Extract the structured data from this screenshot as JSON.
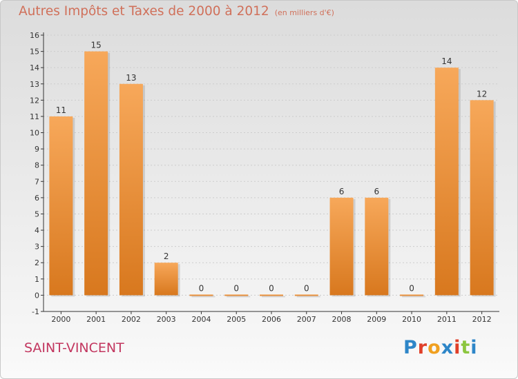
{
  "header": {
    "title": "Autres Impôts et Taxes de 2000 à 2012",
    "subtitle": "(en milliers d'€)"
  },
  "footer": {
    "commune": "SAINT-VINCENT",
    "logo": [
      "P",
      "r",
      "o",
      "x",
      "i",
      "t",
      "i"
    ]
  },
  "colors": {
    "title": "#d0705a",
    "commune": "#c2365f",
    "bar_top": "#f7a85a",
    "bar_bottom": "#d8781e",
    "axis": "#333333",
    "grid": "#cccccc",
    "logo": [
      "#2e86c8",
      "#e0402a",
      "#f0a020",
      "#2e86c8",
      "#e0402a",
      "#8cc63f",
      "#2e86c8"
    ]
  },
  "chart_data": {
    "type": "bar",
    "title": "Autres Impôts et Taxes de 2000 à 2012",
    "xlabel": "",
    "ylabel": "",
    "categories": [
      "2000",
      "2001",
      "2002",
      "2003",
      "2004",
      "2005",
      "2006",
      "2007",
      "2008",
      "2009",
      "2010",
      "2011",
      "2012"
    ],
    "values": [
      11,
      15,
      13,
      2,
      0,
      0,
      0,
      0,
      6,
      6,
      0,
      14,
      12
    ],
    "data_labels": [
      "11",
      "15",
      "13",
      "2",
      "0",
      "0",
      "0",
      "0",
      "6",
      "6",
      "0",
      "14",
      "12"
    ],
    "ylim": [
      -1,
      16
    ],
    "yticks": [
      "-1",
      "0",
      "1",
      "2",
      "3",
      "4",
      "5",
      "6",
      "7",
      "8",
      "9",
      "10",
      "11",
      "12",
      "13",
      "14",
      "15",
      "16"
    ],
    "grid": true
  }
}
